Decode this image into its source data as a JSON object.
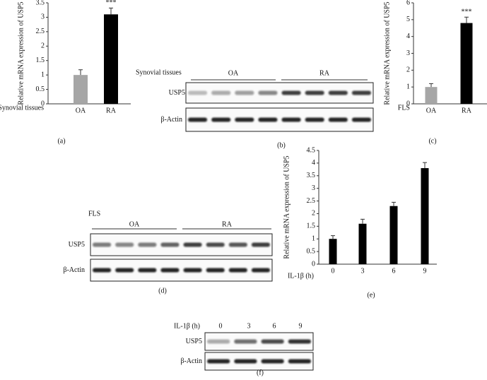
{
  "chart_data": [
    {
      "type": "bar",
      "panel_label": "(a)",
      "ylabel": "Relative mRNA expression of USP5",
      "xlabel": "Synovial tissues",
      "categories": [
        "OA",
        "RA"
      ],
      "values": [
        1.0,
        3.1
      ],
      "errors": [
        0.18,
        0.22
      ],
      "colors": [
        "#a6a6a6",
        "#000000"
      ],
      "annotation": "***",
      "ylim": [
        0,
        3.5
      ],
      "yticks": [
        0,
        0.5,
        1,
        1.5,
        2,
        2.5,
        3,
        3.5
      ]
    },
    {
      "type": "bar",
      "panel_label": "(c)",
      "ylabel": "Relative mRNA expression of USP5",
      "xlabel": "FLS",
      "categories": [
        "OA",
        "RA"
      ],
      "values": [
        1.0,
        4.8
      ],
      "errors": [
        0.2,
        0.35
      ],
      "colors": [
        "#a6a6a6",
        "#000000"
      ],
      "annotation": "***",
      "ylim": [
        0,
        6
      ],
      "yticks": [
        0,
        1,
        2,
        3,
        4,
        5,
        6
      ]
    },
    {
      "type": "bar",
      "panel_label": "(e)",
      "ylabel": "Relative mRNA expression of USP5",
      "xlabel": "IL-1β (h)",
      "categories": [
        "0",
        "3",
        "6",
        "9"
      ],
      "values": [
        1.0,
        1.6,
        2.3,
        3.8
      ],
      "errors": [
        0.13,
        0.18,
        0.15,
        0.22
      ],
      "colors": [
        "#000000",
        "#000000",
        "#000000",
        "#000000"
      ],
      "ylim": [
        0,
        4.5
      ],
      "yticks": [
        0,
        0.5,
        1,
        1.5,
        2,
        2.5,
        3,
        3.5,
        4,
        4.5
      ]
    }
  ],
  "blots": [
    {
      "panel_label": "(b)",
      "header": "Synovial tissues",
      "groups": [
        "OA",
        "RA"
      ],
      "rows": [
        "USP5",
        "β-Actin"
      ]
    },
    {
      "panel_label": "(d)",
      "header": "FLS",
      "groups": [
        "OA",
        "RA"
      ],
      "rows": [
        "USP5",
        "β-Actin"
      ]
    },
    {
      "panel_label": "(f)",
      "header": "IL-1β (h)",
      "lanes": [
        "0",
        "3",
        "6",
        "9"
      ],
      "rows": [
        "USP5",
        "β-Actin"
      ]
    }
  ]
}
